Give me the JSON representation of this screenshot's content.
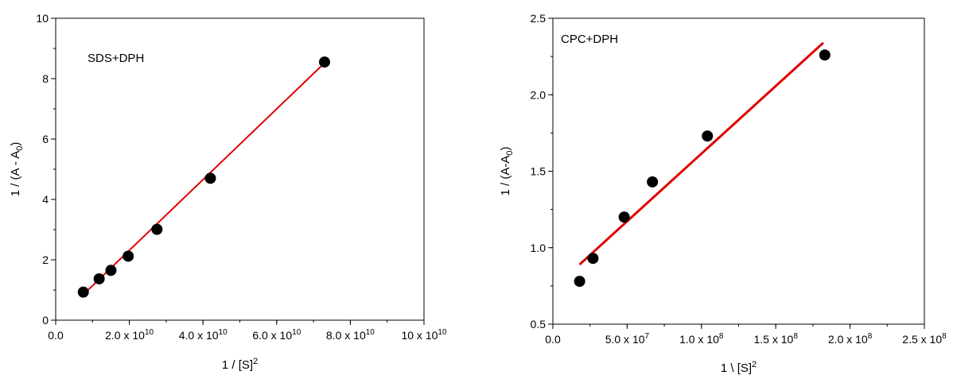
{
  "chart_data": [
    {
      "type": "scatter",
      "annotation": "SDS+DPH",
      "ylabel": {
        "main": "1 / (A - A",
        "sub": "0",
        "tail": ")"
      },
      "xlabel": {
        "main": "1 / [S]",
        "sup": "2"
      },
      "xlim": [
        0,
        10
      ],
      "ylim": [
        0,
        10
      ],
      "x_ticks": [
        {
          "value": 0,
          "main": "0.0",
          "sup": ""
        },
        {
          "value": 2,
          "main": "2.0 x 10",
          "sup": "10"
        },
        {
          "value": 4,
          "main": "4.0 x 10",
          "sup": "10"
        },
        {
          "value": 6,
          "main": "6.0 x 10",
          "sup": "10"
        },
        {
          "value": 8,
          "main": "8.0 x 10",
          "sup": "10"
        },
        {
          "value": 10,
          "main": "10 x 10",
          "sup": "10"
        }
      ],
      "y_ticks": [
        {
          "value": 0,
          "label": "0"
        },
        {
          "value": 2,
          "label": "2"
        },
        {
          "value": 4,
          "label": "4"
        },
        {
          "value": 6,
          "label": "6"
        },
        {
          "value": 8,
          "label": "8"
        },
        {
          "value": 10,
          "label": "10"
        }
      ],
      "x_minor_step": 1,
      "y_minor_step": 1,
      "points": [
        {
          "x": 0.75,
          "y": 0.93
        },
        {
          "x": 1.18,
          "y": 1.37
        },
        {
          "x": 1.5,
          "y": 1.65
        },
        {
          "x": 1.97,
          "y": 2.12
        },
        {
          "x": 2.75,
          "y": 3.01
        },
        {
          "x": 4.2,
          "y": 4.7
        },
        {
          "x": 7.3,
          "y": 8.55
        }
      ],
      "fit_line": {
        "x": [
          0.75,
          7.3
        ],
        "y": [
          0.85,
          8.52
        ],
        "color": "#e00000"
      },
      "marker_color": "#000000"
    },
    {
      "type": "scatter",
      "annotation": "CPC+DPH",
      "ylabel": {
        "main": "1 / (A-A",
        "sub": "0",
        "tail": ")"
      },
      "xlabel": {
        "main": "1 \\ [S]",
        "sup": "2"
      },
      "xlim": [
        0,
        2.5
      ],
      "ylim": [
        0.5,
        2.5
      ],
      "x_ticks": [
        {
          "value": 0,
          "main": "0.0",
          "sup": ""
        },
        {
          "value": 0.5,
          "main": "5.0 x 10",
          "sup": "7"
        },
        {
          "value": 1.0,
          "main": "1.0 x 10",
          "sup": "8"
        },
        {
          "value": 1.5,
          "main": "1.5 x 10",
          "sup": "8"
        },
        {
          "value": 2.0,
          "main": "2.0 x 10",
          "sup": "8"
        },
        {
          "value": 2.5,
          "main": "2.5 x 10",
          "sup": "8"
        }
      ],
      "y_ticks": [
        {
          "value": 0.5,
          "label": "0.5"
        },
        {
          "value": 1.0,
          "label": "1.0"
        },
        {
          "value": 1.5,
          "label": "1.5"
        },
        {
          "value": 2.0,
          "label": "2.0"
        },
        {
          "value": 2.5,
          "label": "2.5"
        }
      ],
      "x_minor_step": 0.25,
      "y_minor_step": 0.25,
      "points": [
        {
          "x": 0.18,
          "y": 0.78
        },
        {
          "x": 0.27,
          "y": 0.93
        },
        {
          "x": 0.48,
          "y": 1.2
        },
        {
          "x": 0.67,
          "y": 1.43
        },
        {
          "x": 1.04,
          "y": 1.73
        },
        {
          "x": 1.83,
          "y": 2.26
        }
      ],
      "fit_line": {
        "x": [
          0.18,
          1.82
        ],
        "y": [
          0.89,
          2.34
        ],
        "color": "#e00000"
      },
      "marker_color": "#000000"
    }
  ]
}
